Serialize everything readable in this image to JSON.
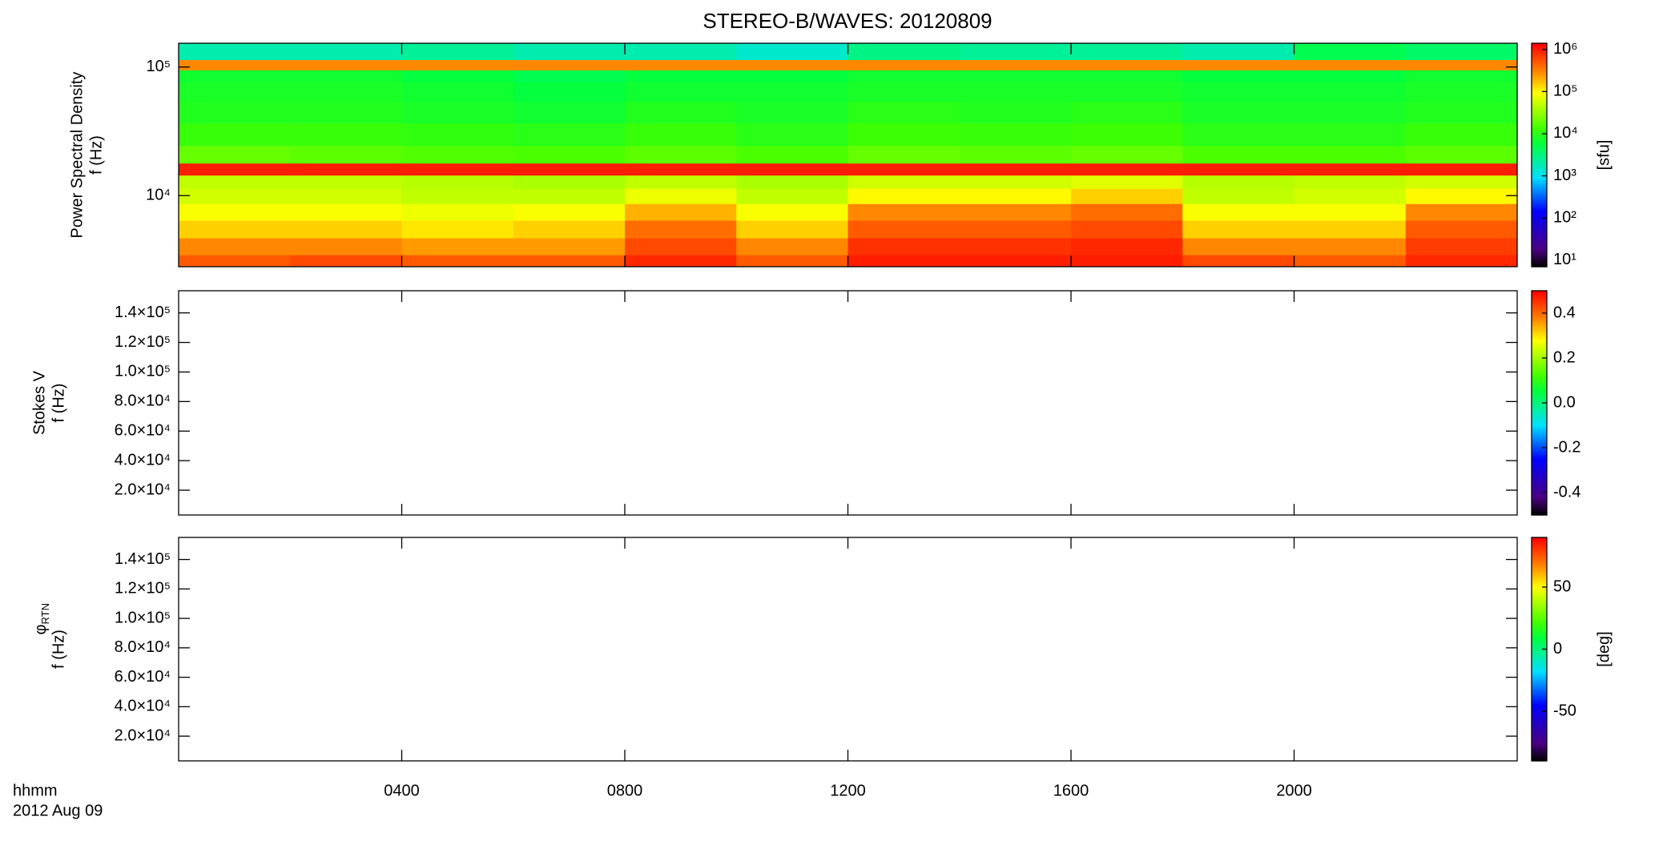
{
  "title": "STEREO-B/WAVES: 20120809",
  "xlim": [
    0,
    24
  ],
  "xticks": [
    {
      "value": 4,
      "label": "0400"
    },
    {
      "value": 8,
      "label": "0800"
    },
    {
      "value": 12,
      "label": "1200"
    },
    {
      "value": 16,
      "label": "1600"
    },
    {
      "value": 20,
      "label": "2000"
    }
  ],
  "x_label": "hhmm",
  "date_label": "2012 Aug 09",
  "colormap": "rainbow",
  "chart_data": [
    {
      "type": "heatmap",
      "ylabel_lines": [
        "Power Spectral Density",
        "f (Hz)"
      ],
      "ylog": true,
      "ylim": [
        2800,
        153000
      ],
      "yticks": [
        {
          "value": 10000,
          "label": "10⁴"
        },
        {
          "value": 100000,
          "label": "10⁵"
        }
      ],
      "x": [
        0,
        2,
        4,
        6,
        8,
        10,
        12,
        14,
        16,
        18,
        20,
        22
      ],
      "y": [
        3000,
        4000,
        5500,
        7500,
        10000,
        13000,
        16000,
        20000,
        30000,
        45000,
        65000,
        90000,
        100000,
        130000
      ],
      "z": [
        [
          500000,
          600000,
          500000,
          500000,
          900000,
          500000,
          1000000,
          1000000,
          1000000,
          600000,
          500000,
          900000
        ],
        [
          300000,
          300000,
          250000,
          250000,
          600000,
          300000,
          800000,
          800000,
          900000,
          300000,
          300000,
          700000
        ],
        [
          150000,
          150000,
          120000,
          150000,
          400000,
          150000,
          500000,
          500000,
          600000,
          150000,
          150000,
          500000
        ],
        [
          90000,
          90000,
          80000,
          90000,
          200000,
          90000,
          300000,
          300000,
          400000,
          90000,
          90000,
          300000
        ],
        [
          60000,
          60000,
          50000,
          50000,
          80000,
          50000,
          100000,
          100000,
          150000,
          50000,
          60000,
          100000
        ],
        [
          50000,
          50000,
          45000,
          40000,
          50000,
          40000,
          60000,
          60000,
          70000,
          45000,
          50000,
          60000
        ],
        [
          1000000,
          1000000,
          1000000,
          1000000,
          1000000,
          1000000,
          1000000,
          1000000,
          1000000,
          1000000,
          1000000,
          1000000
        ],
        [
          20000,
          18000,
          16000,
          15000,
          18000,
          15000,
          20000,
          18000,
          20000,
          15000,
          15000,
          18000
        ],
        [
          12000,
          12000,
          11000,
          10000,
          12000,
          10000,
          13000,
          12000,
          13000,
          10000,
          10000,
          12000
        ],
        [
          9000,
          9000,
          8000,
          7000,
          9000,
          8000,
          10000,
          9000,
          10000,
          8000,
          8000,
          9000
        ],
        [
          8000,
          8000,
          7000,
          6000,
          7000,
          7000,
          8000,
          8000,
          8000,
          7000,
          7000,
          8000
        ],
        [
          7000,
          7000,
          6000,
          5000,
          6000,
          6000,
          7000,
          7000,
          7000,
          6000,
          6000,
          7000
        ],
        [
          300000,
          300000,
          300000,
          300000,
          300000,
          300000,
          300000,
          300000,
          300000,
          300000,
          300000,
          300000
        ],
        [
          2000,
          2000,
          2500,
          2000,
          2000,
          1500,
          3000,
          2500,
          2500,
          2000,
          5000,
          4000
        ]
      ],
      "colorbar": {
        "log": true,
        "lim": [
          7,
          1400000
        ],
        "label": "[sfu]",
        "ticks": [
          {
            "value": 10,
            "label": "10¹"
          },
          {
            "value": 100,
            "label": "10²"
          },
          {
            "value": 1000,
            "label": "10³"
          },
          {
            "value": 10000,
            "label": "10⁴"
          },
          {
            "value": 100000,
            "label": "10⁵"
          },
          {
            "value": 1000000,
            "label": "10⁶"
          }
        ]
      }
    },
    {
      "type": "heatmap",
      "ylabel_lines": [
        "Stokes V",
        "f (Hz)"
      ],
      "ylog": false,
      "ylim": [
        3200,
        155000
      ],
      "yticks": [
        {
          "value": 20000,
          "label": "2.0×10⁴"
        },
        {
          "value": 40000,
          "label": "4.0×10⁴"
        },
        {
          "value": 60000,
          "label": "6.0×10⁴"
        },
        {
          "value": 80000,
          "label": "8.0×10⁴"
        },
        {
          "value": 100000,
          "label": "1.0×10⁵"
        },
        {
          "value": 120000,
          "label": "1.2×10⁵"
        },
        {
          "value": 140000,
          "label": "1.4×10⁵"
        }
      ],
      "colorbar": {
        "log": false,
        "lim": [
          -0.5,
          0.5
        ],
        "ticks": [
          -0.4,
          -0.2,
          {
            "value": 0,
            "label": "0.0"
          },
          0.2,
          0.4
        ]
      }
    },
    {
      "type": "heatmap",
      "ylabel_symbol": "φ",
      "ylabel_subscript": "RTN",
      "ylabel_lines": [
        "f (Hz)"
      ],
      "ylog": false,
      "ylim": [
        3200,
        155000
      ],
      "yticks": [
        {
          "value": 20000,
          "label": "2.0×10⁴"
        },
        {
          "value": 40000,
          "label": "4.0×10⁴"
        },
        {
          "value": 60000,
          "label": "6.0×10⁴"
        },
        {
          "value": 80000,
          "label": "8.0×10⁴"
        },
        {
          "value": 100000,
          "label": "1.0×10⁵"
        },
        {
          "value": 120000,
          "label": "1.2×10⁵"
        },
        {
          "value": 140000,
          "label": "1.4×10⁵"
        }
      ],
      "colorbar": {
        "log": false,
        "lim": [
          -90,
          90
        ],
        "label": "[deg]",
        "ticks": [
          -50,
          0,
          50
        ]
      }
    }
  ]
}
